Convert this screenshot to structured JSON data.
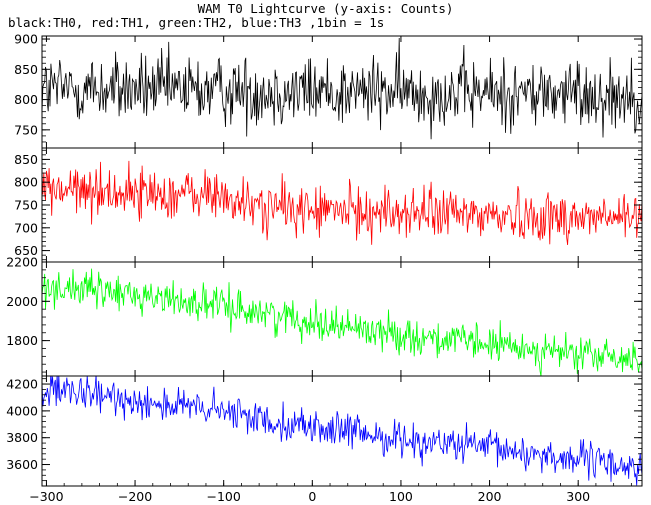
{
  "chart_data": {
    "type": "line",
    "title": "WAM T0 Lightcurve (y-axis: Counts)",
    "subtitle": "black:TH0, red:TH1, green:TH2, blue:TH3 ,1bin = 1s",
    "xlabel": "",
    "ylabel": "",
    "xlim": [
      -305,
      372
    ],
    "x_ticks": [
      -300,
      -200,
      -100,
      0,
      100,
      200,
      300
    ],
    "x_tick_labels": [
      "−300",
      "−200",
      "−100",
      "0",
      "100",
      "200",
      "300"
    ],
    "bin_seconds": 1,
    "panels": [
      {
        "name": "TH0",
        "color": "#000000",
        "ylim": [
          720,
          905
        ],
        "y_ticks": [
          750,
          800,
          850,
          900
        ],
        "trend_x": [
          -305,
          372
        ],
        "trend_y": [
          818,
          808
        ],
        "noise_sd": 29
      },
      {
        "name": "TH1",
        "color": "#ff0000",
        "ylim": [
          625,
          875
        ],
        "y_ticks": [
          650,
          700,
          750,
          800,
          850
        ],
        "trend_x": [
          -305,
          -100,
          -80,
          0,
          372
        ],
        "trend_y": [
          785,
          770,
          750,
          738,
          720
        ],
        "noise_sd": 28
      },
      {
        "name": "TH2",
        "color": "#00ff00",
        "ylim": [
          1620,
          2200
        ],
        "y_ticks": [
          1800,
          2000,
          2200
        ],
        "trend_x": [
          -305,
          -200,
          -100,
          0,
          100,
          200,
          300,
          372
        ],
        "trend_y": [
          2080,
          2035,
          1975,
          1900,
          1830,
          1780,
          1730,
          1700
        ],
        "noise_sd": 45
      },
      {
        "name": "TH3",
        "color": "#0000ff",
        "ylim": [
          3440,
          4260
        ],
        "y_ticks": [
          3600,
          3800,
          4000,
          4200
        ],
        "trend_x": [
          -305,
          -200,
          -100,
          0,
          100,
          200,
          300,
          372
        ],
        "trend_y": [
          4150,
          4080,
          3990,
          3880,
          3790,
          3720,
          3640,
          3570
        ],
        "noise_sd": 65
      }
    ]
  }
}
